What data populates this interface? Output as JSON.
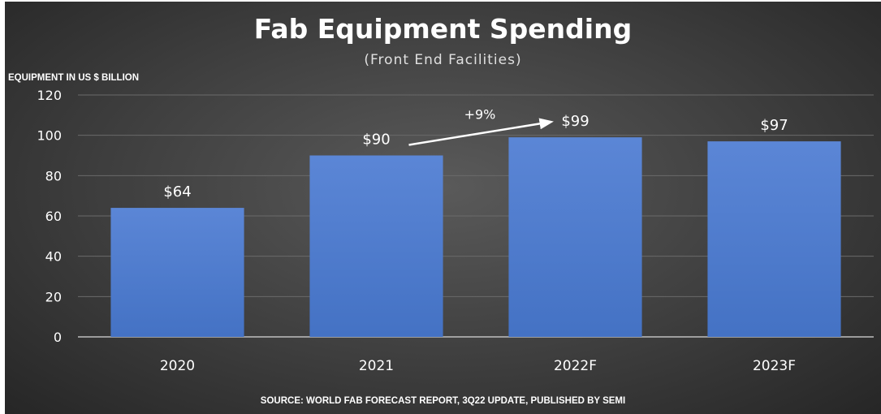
{
  "chart_data": {
    "type": "bar",
    "title": "Fab Equipment Spending",
    "subtitle": "(Front End Facilities)",
    "ylabel": "EQUIPMENT IN US $ BILLION",
    "xlabel": "",
    "categories": [
      "2020",
      "2021",
      "2022F",
      "2023F"
    ],
    "values": [
      64,
      90,
      99,
      97
    ],
    "data_labels": [
      "$64",
      "$90",
      "$99",
      "$97"
    ],
    "ylim": [
      0,
      120
    ],
    "yticks": [
      0,
      20,
      40,
      60,
      80,
      100,
      120
    ],
    "grid": true,
    "bar_color": "#4472c4",
    "annotation": {
      "text": "+9%",
      "from": "2021",
      "to": "2022F"
    },
    "source": "SOURCE: WORLD FAB FORECAST REPORT, 3Q22 UPDATE, PUBLISHED BY SEMI"
  }
}
